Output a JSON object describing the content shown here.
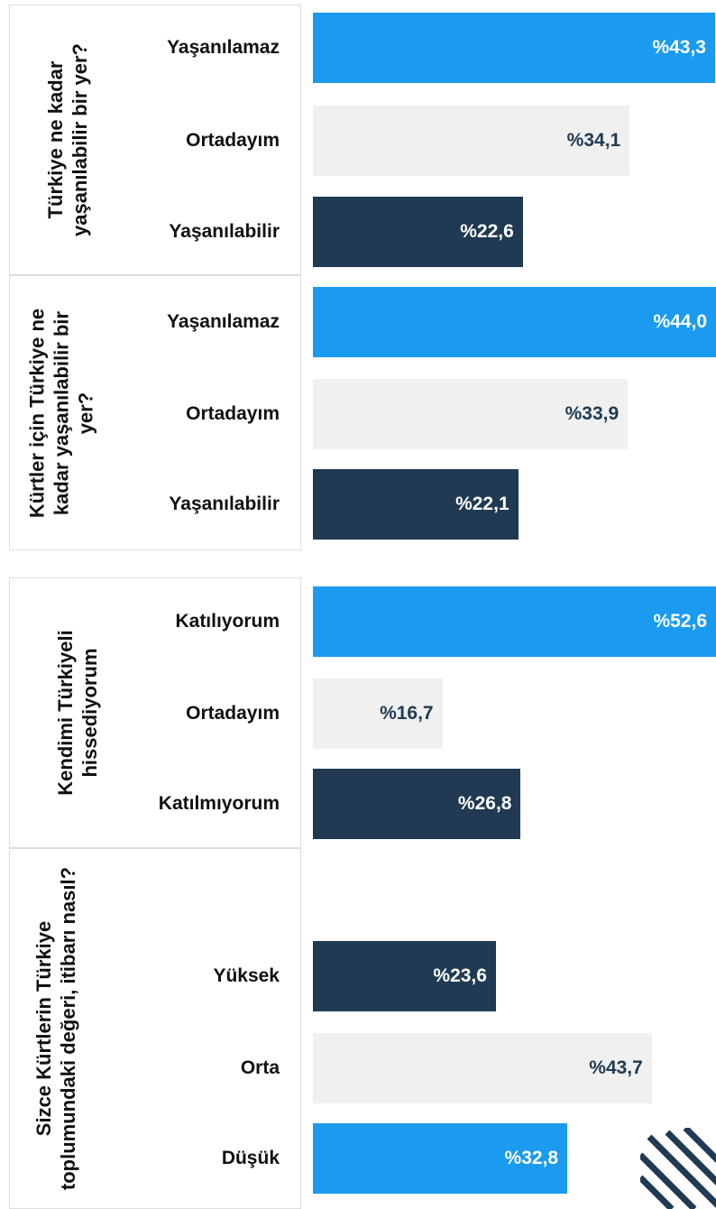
{
  "chart_data": [
    {
      "type": "bar",
      "title": "Türkiye ne kadar yaşanılabilir bir yer?",
      "categories": [
        "Yaşanılamaz",
        "Ortadayım",
        "Yaşanılabilir"
      ],
      "values": [
        43.3,
        34.1,
        22.6
      ],
      "value_labels": [
        "%43,3",
        "%34,1",
        "%22,6"
      ],
      "colors": [
        "#1a9bf0",
        "#f0f0f0",
        "#1f3a52"
      ]
    },
    {
      "type": "bar",
      "title": "Kürtler için Türkiye ne kadar yaşanılabilir bir yer?",
      "categories": [
        "Yaşanılamaz",
        "Ortadayım",
        "Yaşanılabilir"
      ],
      "values": [
        44.0,
        33.9,
        22.1
      ],
      "value_labels": [
        "%44,0",
        "%33,9",
        "%22,1"
      ],
      "colors": [
        "#1a9bf0",
        "#f0f0f0",
        "#1f3a52"
      ]
    },
    {
      "type": "bar",
      "title": "Kendimi Türkiyeli hissediyorum",
      "categories": [
        "Katılıyorum",
        "Ortadayım",
        "Katılmıyorum"
      ],
      "values": [
        52.6,
        16.7,
        26.8
      ],
      "value_labels": [
        "%52,6",
        "%16,7",
        "%26,8"
      ],
      "colors": [
        "#1a9bf0",
        "#f0f0f0",
        "#1f3a52"
      ]
    },
    {
      "type": "bar",
      "title": "Sizce Kürtlerin Türkiye toplumundaki değeri, itibarı nasıl?",
      "categories": [
        "Yüksek",
        "Orta",
        "Düşük"
      ],
      "values": [
        23.6,
        43.7,
        32.8
      ],
      "value_labels": [
        "%23,6",
        "%43,7",
        "%32,8"
      ],
      "colors": [
        "#1f3a52",
        "#f0f0f0",
        "#1a9bf0"
      ]
    }
  ]
}
